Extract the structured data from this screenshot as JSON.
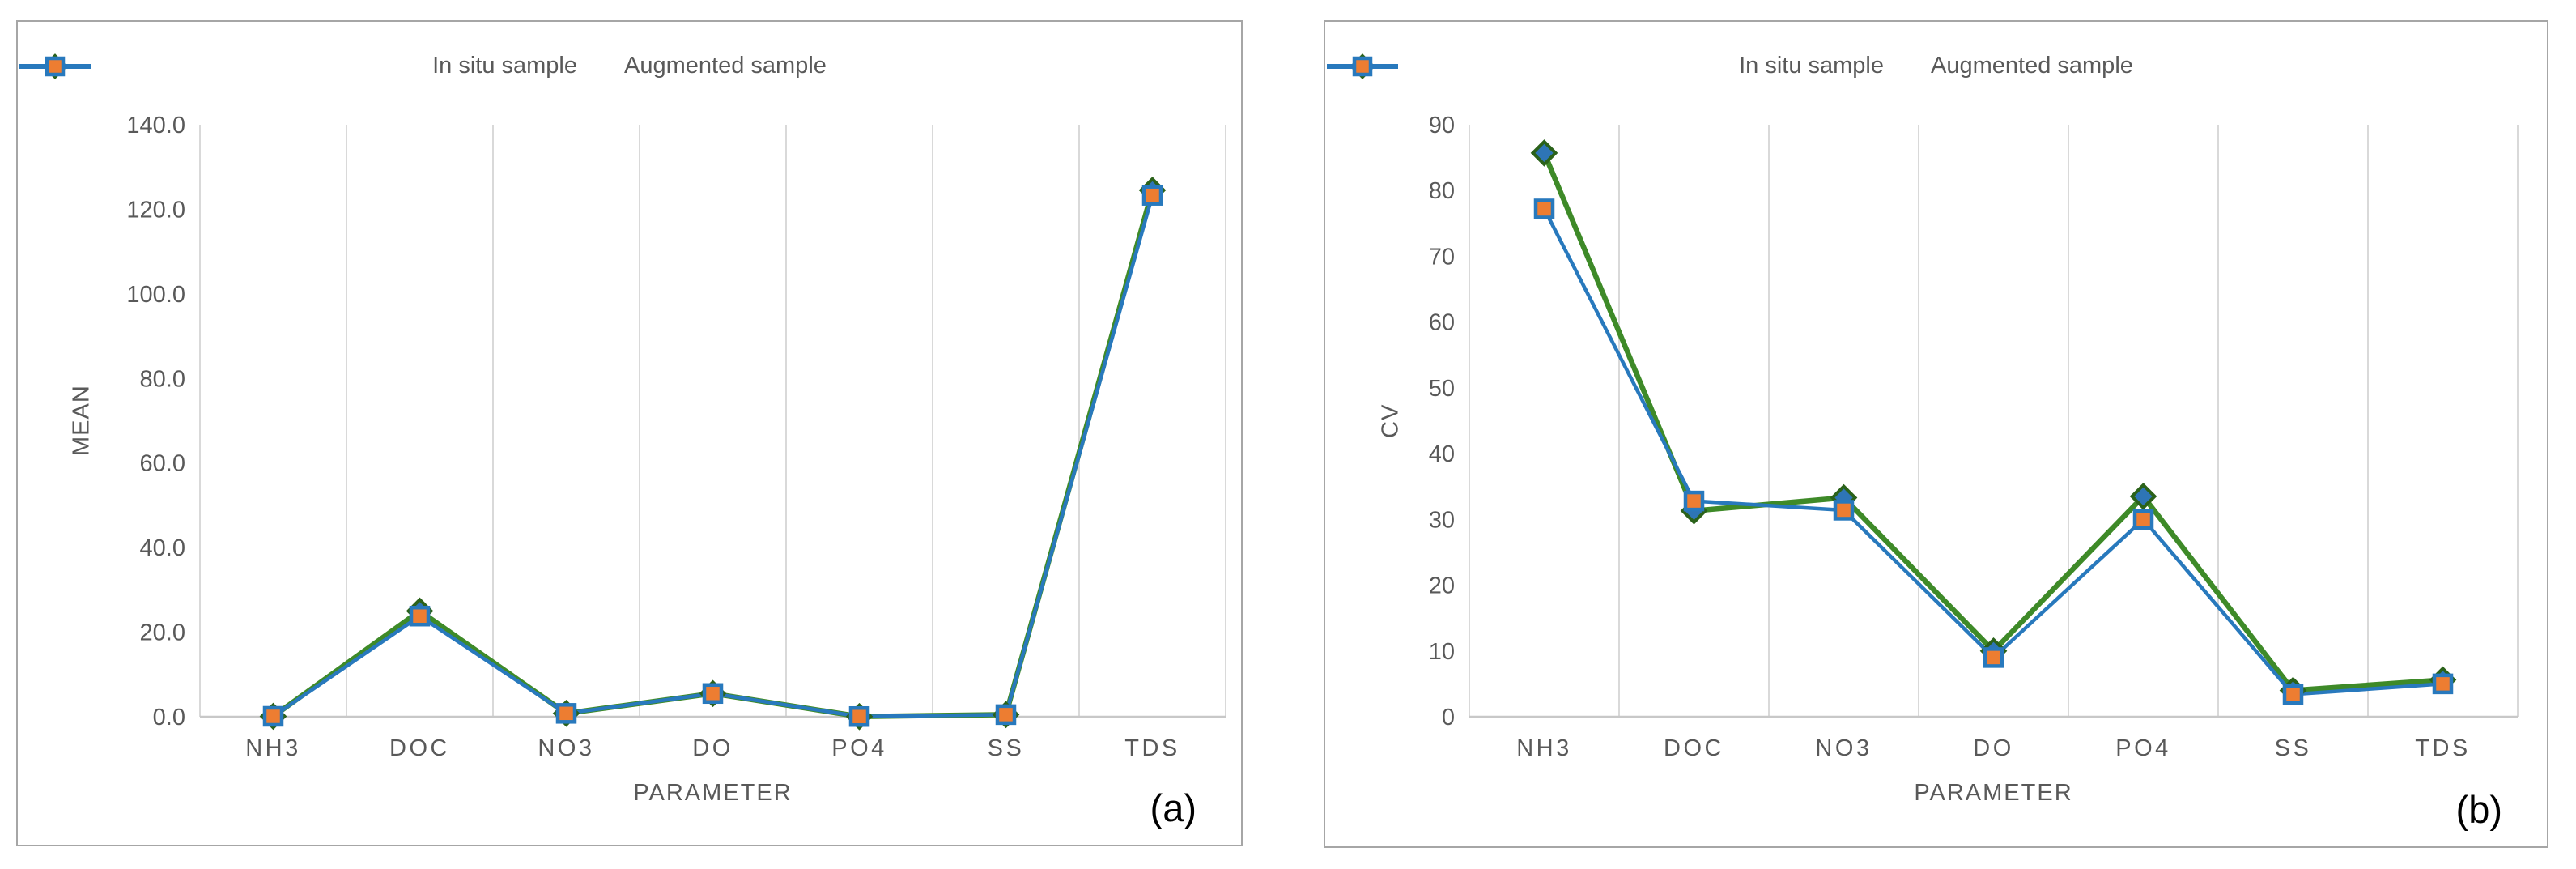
{
  "styles": {
    "green_line": "#3e8a28",
    "diamond_fill": "#2e75b6",
    "diamond_border": "#2b621a",
    "blue_line": "#2879bd",
    "square_fill": "#ed7d31",
    "square_border": "#2879bd",
    "text_gray": "#595959",
    "gridline": "#d9d9d9",
    "axis_line": "#c8c8c8",
    "panel_border": "#a6a6a6",
    "corner_label_color": "#000000"
  },
  "chart_data": [
    {
      "type": "line",
      "panel_label": "(a)",
      "xlabel": "PARAMETER",
      "ylabel": "MEAN",
      "categories": [
        "NH3",
        "DOC",
        "NO3",
        "DO",
        "PO4",
        "SS",
        "TDS"
      ],
      "series": [
        {
          "name": "In situ sample",
          "marker": "diamond",
          "values": [
            0.1,
            25.0,
            0.8,
            5.5,
            0.05,
            0.5,
            124.5
          ]
        },
        {
          "name": "Augmented sample",
          "marker": "square",
          "values": [
            0.1,
            23.8,
            0.8,
            5.5,
            0.05,
            0.5,
            123.3
          ]
        }
      ],
      "ylim": [
        0,
        140
      ],
      "ytick_step": 20,
      "ytick_labels": [
        "0.0",
        "20.0",
        "40.0",
        "60.0",
        "80.0",
        "100.0",
        "120.0",
        "140.0"
      ],
      "legend_position": "top",
      "grid": "vertical-only"
    },
    {
      "type": "line",
      "panel_label": "(b)",
      "xlabel": "PARAMETER",
      "ylabel": "CV",
      "categories": [
        "NH3",
        "DOC",
        "NO3",
        "DO",
        "PO4",
        "SS",
        "TDS"
      ],
      "series": [
        {
          "name": "In situ sample",
          "marker": "diamond",
          "values": [
            85.7,
            31.3,
            33.3,
            10.0,
            33.5,
            4.0,
            5.6
          ]
        },
        {
          "name": "Augmented sample",
          "marker": "square",
          "values": [
            77.2,
            32.8,
            31.4,
            9.0,
            30.0,
            3.4,
            5.0
          ]
        }
      ],
      "ylim": [
        0,
        90
      ],
      "ytick_step": 10,
      "ytick_labels": [
        "0",
        "10",
        "20",
        "30",
        "40",
        "50",
        "60",
        "70",
        "80",
        "90"
      ],
      "legend_position": "top",
      "grid": "vertical-only"
    }
  ]
}
